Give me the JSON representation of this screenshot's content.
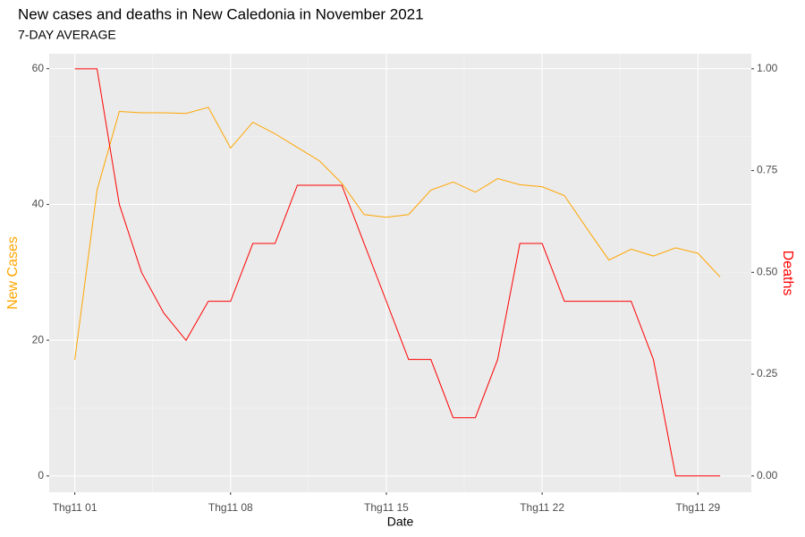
{
  "chart_data": {
    "type": "line",
    "title": "New cases and deaths in New Caledonia in November 2021",
    "subtitle": "7-DAY AVERAGE",
    "x_label": "Date",
    "y_label": "New Cases",
    "y2_label": "Deaths",
    "x": [
      1,
      2,
      3,
      4,
      5,
      6,
      7,
      8,
      9,
      10,
      11,
      12,
      13,
      14,
      15,
      16,
      17,
      18,
      19,
      20,
      21,
      22,
      23,
      24,
      25,
      26,
      27,
      28,
      29,
      30
    ],
    "xlim": [
      -0.15,
      31.4
    ],
    "xticks": [
      {
        "value": 1,
        "label": "Thg11 01"
      },
      {
        "value": 8,
        "label": "Thg11 08"
      },
      {
        "value": 15,
        "label": "Thg11 15"
      },
      {
        "value": 22,
        "label": "Thg11 22"
      },
      {
        "value": 29,
        "label": "Thg11 29"
      }
    ],
    "minor_xticks": [
      4.5,
      11.5,
      18.5,
      25.5
    ],
    "ylim": [
      -2.4,
      62.2
    ],
    "yticks": [
      0,
      20,
      40,
      60
    ],
    "minor_yticks": [
      10,
      30,
      50
    ],
    "y2lim": [
      -0.04,
      1.037
    ],
    "y2ticks": [
      {
        "value": 0,
        "label": "0.00"
      },
      {
        "value": 0.25,
        "label": "0.25"
      },
      {
        "value": 0.5,
        "label": "0.50"
      },
      {
        "value": 0.75,
        "label": "0.75"
      },
      {
        "value": 1,
        "label": "1.00"
      }
    ],
    "grid": true,
    "series": [
      {
        "name": "New Cases",
        "color": "#FFA500",
        "values": [
          17.1,
          42.1,
          53.7,
          53.5,
          53.5,
          53.4,
          54.3,
          48.3,
          52.1,
          50.4,
          48.4,
          46.4,
          43.1,
          38.5,
          38.1,
          38.5,
          42.1,
          43.3,
          41.8,
          43.8,
          42.9,
          42.6,
          41.3,
          36.5,
          31.8,
          33.4,
          32.4,
          33.6,
          32.8,
          29.3
        ]
      },
      {
        "name": "Deaths",
        "color": "#FF0000",
        "axis": "y2",
        "values": [
          1.0,
          1.0,
          0.667,
          0.5,
          0.4,
          0.333,
          0.429,
          0.429,
          0.571,
          0.571,
          0.714,
          0.714,
          0.714,
          0.571,
          0.429,
          0.286,
          0.286,
          0.143,
          0.143,
          0.286,
          0.571,
          0.571,
          0.429,
          0.429,
          0.429,
          0.429,
          0.286,
          0,
          0,
          0
        ]
      }
    ]
  }
}
